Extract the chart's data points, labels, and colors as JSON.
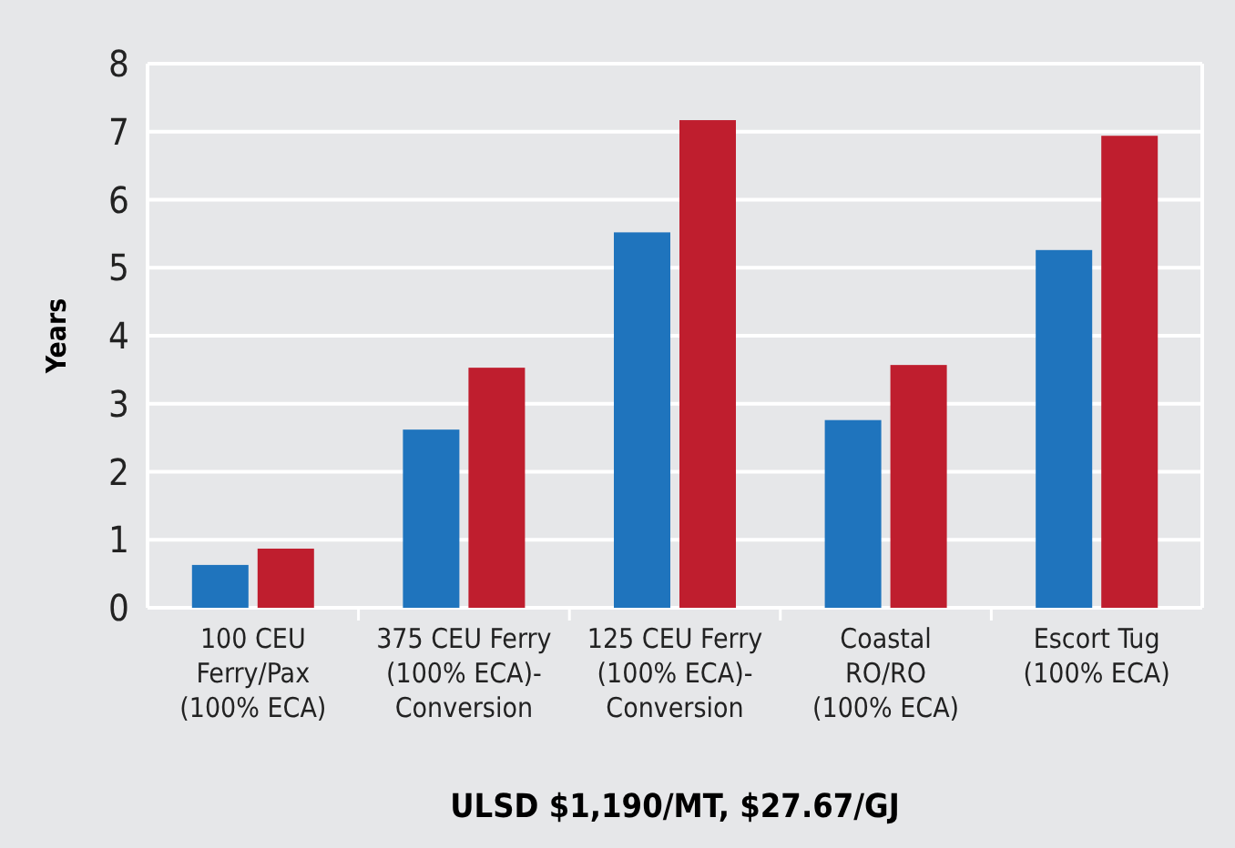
{
  "chart_data": {
    "type": "bar",
    "xlabel": "ULSD $1,190/MT, $27.67/GJ",
    "ylabel": "Years",
    "categories": [
      "100 CEU\nFerry/Pax\n(100% ECA)",
      "375 CEU Ferry\n(100% ECA)-\nConversion",
      "125 CEU Ferry\n(100% ECA)-\nConversion",
      "Coastal\nRO/RO\n(100% ECA)",
      "Escort Tug\n(100% ECA)"
    ],
    "series": [
      {
        "color": "#1f74bd",
        "values": [
          0.63,
          2.62,
          5.52,
          2.76,
          5.26
        ]
      },
      {
        "color": "#bf1e2e",
        "values": [
          0.87,
          3.53,
          7.17,
          3.57,
          6.94
        ]
      }
    ],
    "ylim": [
      0,
      8
    ],
    "yticks": [
      0,
      1,
      2,
      3,
      4,
      5,
      6,
      7,
      8
    ],
    "grid": "y"
  }
}
